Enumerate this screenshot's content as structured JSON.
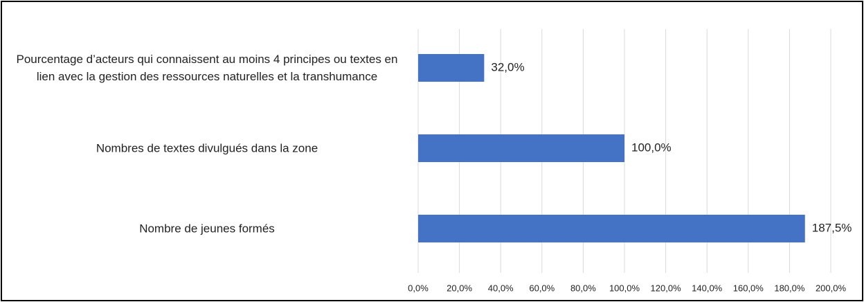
{
  "chart_data": {
    "type": "bar",
    "orientation": "horizontal",
    "categories": [
      "Pourcentage d’acteurs qui connaissent au moins 4 principes ou textes en lien avec la gestion des ressources naturelles et la transhumance",
      "Nombres de textes divulgués dans la zone",
      "Nombre de jeunes formés"
    ],
    "values": [
      32,
      100,
      187.5
    ],
    "value_labels": [
      "32,0%",
      "100,0%",
      "187,5%"
    ],
    "color": "#4472c4",
    "xlim": [
      0,
      200
    ],
    "xticks": [
      {
        "value": 0,
        "label": "0,0%"
      },
      {
        "value": 20,
        "label": "20,0%"
      },
      {
        "value": 40,
        "label": "40,0%"
      },
      {
        "value": 60,
        "label": "60,0%"
      },
      {
        "value": 80,
        "label": "80,0%"
      },
      {
        "value": 100,
        "label": "100,0%"
      },
      {
        "value": 120,
        "label": "120,0%"
      },
      {
        "value": 140,
        "label": "140,0%"
      },
      {
        "value": 160,
        "label": "160,0%"
      },
      {
        "value": 180,
        "label": "180,0%"
      },
      {
        "value": 200,
        "label": "200,0%"
      }
    ],
    "grid": true
  }
}
